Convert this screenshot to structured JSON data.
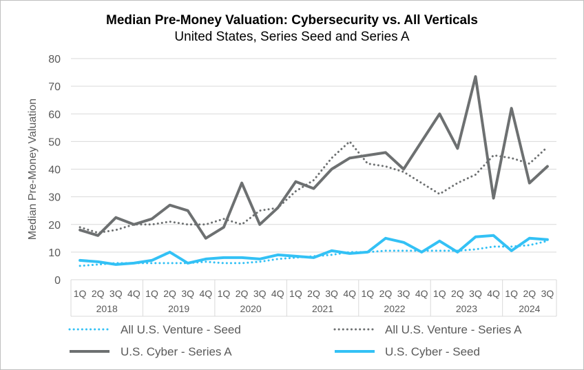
{
  "chart_data": {
    "type": "line",
    "title": "Median Pre-Money Valuation: Cybersecurity vs. All Verticals",
    "subtitle": "United States, Series Seed and Series A",
    "ylabel": "Median Pre-Money Valuation",
    "xlabel": "",
    "ylim": [
      0,
      80
    ],
    "yticks": [
      0,
      10,
      20,
      30,
      40,
      50,
      60,
      70,
      80
    ],
    "quarters": [
      "1Q",
      "2Q",
      "3Q",
      "4Q",
      "1Q",
      "2Q",
      "3Q",
      "4Q",
      "1Q",
      "2Q",
      "3Q",
      "4Q",
      "1Q",
      "2Q",
      "3Q",
      "4Q",
      "1Q",
      "2Q",
      "3Q",
      "4Q",
      "1Q",
      "2Q",
      "3Q",
      "4Q",
      "1Q",
      "2Q",
      "3Q"
    ],
    "years": [
      "2018",
      "2019",
      "2020",
      "2021",
      "2022",
      "2023",
      "2024"
    ],
    "grid": "horizontal",
    "legend_position": "bottom",
    "series": [
      {
        "name": "All U.S. Venture - Seed",
        "style": "dotted",
        "color": "#33c1f5",
        "values": [
          5,
          5.5,
          6,
          6,
          6,
          6,
          6,
          6.5,
          6,
          6,
          6.5,
          7.5,
          8,
          8.5,
          9,
          10,
          10,
          10.5,
          10.5,
          10.5,
          10.5,
          10.5,
          11,
          12,
          12,
          12.5,
          14
        ]
      },
      {
        "name": "All U.S. Venture - Series A",
        "style": "dotted",
        "color": "#6d7071",
        "values": [
          19,
          17,
          18,
          20,
          20,
          21,
          20,
          20,
          22,
          20,
          25,
          26,
          32,
          36,
          44,
          50,
          42,
          41,
          39,
          35,
          31,
          35,
          38,
          45,
          44,
          42,
          48
        ]
      },
      {
        "name": "U.S. Cyber - Series A",
        "style": "solid",
        "color": "#6d7071",
        "values": [
          18,
          16,
          22.5,
          20,
          22,
          27,
          25,
          15,
          19,
          35,
          20,
          26,
          35.5,
          33,
          40,
          44,
          45,
          46,
          40,
          50,
          60,
          47.5,
          73.5,
          29.5,
          62,
          35,
          41
        ]
      },
      {
        "name": "U.S. Cyber - Seed",
        "style": "solid",
        "color": "#33c1f5",
        "values": [
          7,
          6.5,
          5.5,
          6,
          7,
          10,
          6,
          7.5,
          8,
          8,
          7.5,
          9,
          8.5,
          8,
          10.5,
          9.5,
          10,
          15,
          13.5,
          10,
          14,
          10,
          15.5,
          16,
          10.5,
          15,
          14.5
        ]
      }
    ]
  }
}
